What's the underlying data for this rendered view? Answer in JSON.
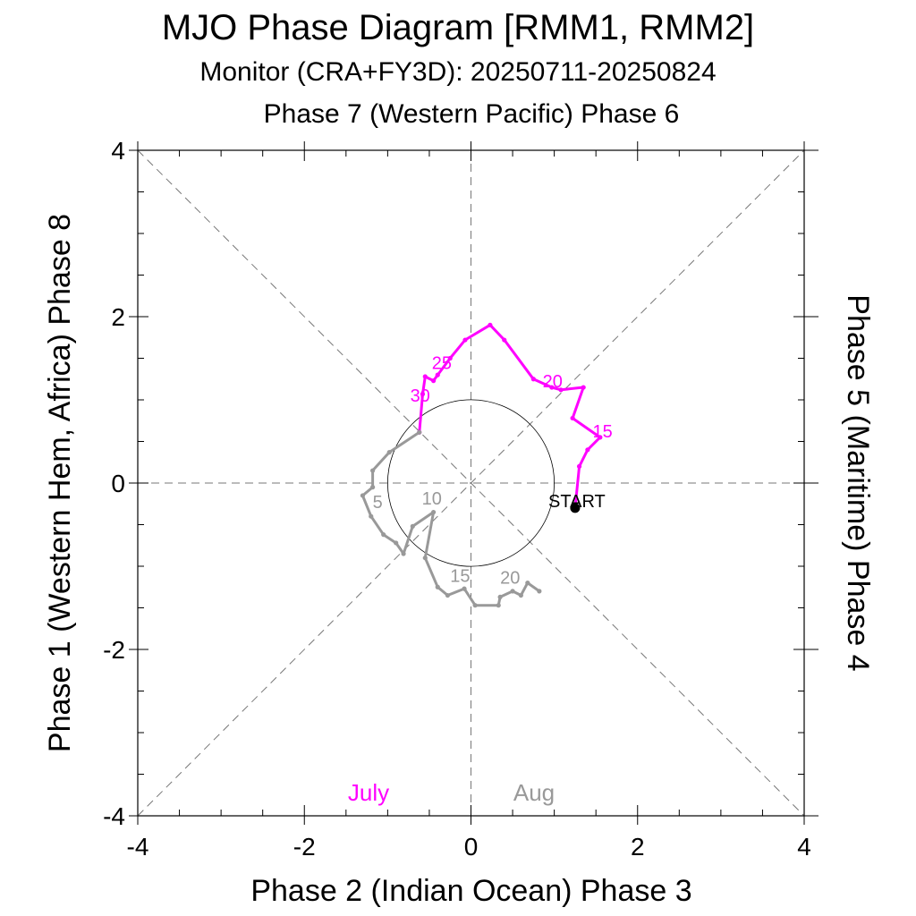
{
  "chart_data": {
    "type": "line",
    "title": "MJO Phase Diagram [RMM1, RMM2]",
    "subtitle": "Monitor (CRA+FY3D): 20250711-20250824",
    "top_label": "Phase 7 (Western Pacific) Phase 6",
    "xlabel": "Phase 2 (Indian Ocean) Phase 3",
    "ylabel": "Phase 1 (Western Hem, Africa) Phase 8",
    "right_label": "Phase 5 (Maritime) Phase 4",
    "xlim": [
      -4,
      4
    ],
    "ylim": [
      -4,
      4
    ],
    "xticks": [
      "-4",
      "-2",
      "0",
      "2",
      "4"
    ],
    "yticks": [
      "-4",
      "-2",
      "0",
      "2",
      "4"
    ],
    "start_label": "START",
    "series": [
      {
        "name": "July",
        "color": "#ff00ff",
        "points": [
          [
            1.25,
            -0.3
          ],
          [
            1.3,
            0.2
          ],
          [
            1.4,
            0.4
          ],
          [
            1.55,
            0.55
          ],
          [
            1.22,
            0.78
          ],
          [
            1.35,
            1.15
          ],
          [
            1.08,
            1.12
          ],
          [
            0.97,
            1.15
          ],
          [
            0.75,
            1.25
          ],
          [
            0.4,
            1.72
          ],
          [
            0.23,
            1.9
          ],
          [
            -0.07,
            1.72
          ],
          [
            -0.25,
            1.5
          ],
          [
            -0.4,
            1.3
          ],
          [
            -0.45,
            1.23
          ],
          [
            -0.55,
            1.28
          ],
          [
            -0.58,
            1.07
          ],
          [
            -0.62,
            0.61
          ]
        ],
        "day_labels": [
          {
            "day": "15",
            "x": 1.58,
            "y": 0.55
          },
          {
            "day": "20",
            "x": 0.98,
            "y": 1.15
          },
          {
            "day": "25",
            "x": -0.35,
            "y": 1.37
          },
          {
            "day": "30",
            "x": -0.61,
            "y": 0.98
          }
        ]
      },
      {
        "name": "Aug",
        "color": "#999999",
        "points": [
          [
            -0.62,
            0.61
          ],
          [
            -0.98,
            0.37
          ],
          [
            -1.18,
            0.15
          ],
          [
            -1.18,
            -0.05
          ],
          [
            -1.3,
            -0.15
          ],
          [
            -1.2,
            -0.4
          ],
          [
            -1.05,
            -0.62
          ],
          [
            -0.9,
            -0.72
          ],
          [
            -0.81,
            -0.85
          ],
          [
            -0.7,
            -0.52
          ],
          [
            -0.45,
            -0.35
          ],
          [
            -0.55,
            -0.9
          ],
          [
            -0.4,
            -1.25
          ],
          [
            -0.28,
            -1.35
          ],
          [
            -0.08,
            -1.27
          ],
          [
            0.05,
            -1.47
          ],
          [
            0.33,
            -1.47
          ],
          [
            0.35,
            -1.37
          ],
          [
            0.5,
            -1.3
          ],
          [
            0.6,
            -1.35
          ],
          [
            0.68,
            -1.2
          ],
          [
            0.82,
            -1.3
          ]
        ],
        "day_labels": [
          {
            "day": "5",
            "x": -1.12,
            "y": -0.3
          },
          {
            "day": "10",
            "x": -0.47,
            "y": -0.26
          },
          {
            "day": "15",
            "x": -0.13,
            "y": -1.19
          },
          {
            "day": "20",
            "x": 0.47,
            "y": -1.21
          }
        ]
      }
    ],
    "legend": [
      {
        "name": "July",
        "color": "#ff00ff"
      },
      {
        "name": "Aug",
        "color": "#999999"
      }
    ],
    "reference_circle_radius": 1
  }
}
